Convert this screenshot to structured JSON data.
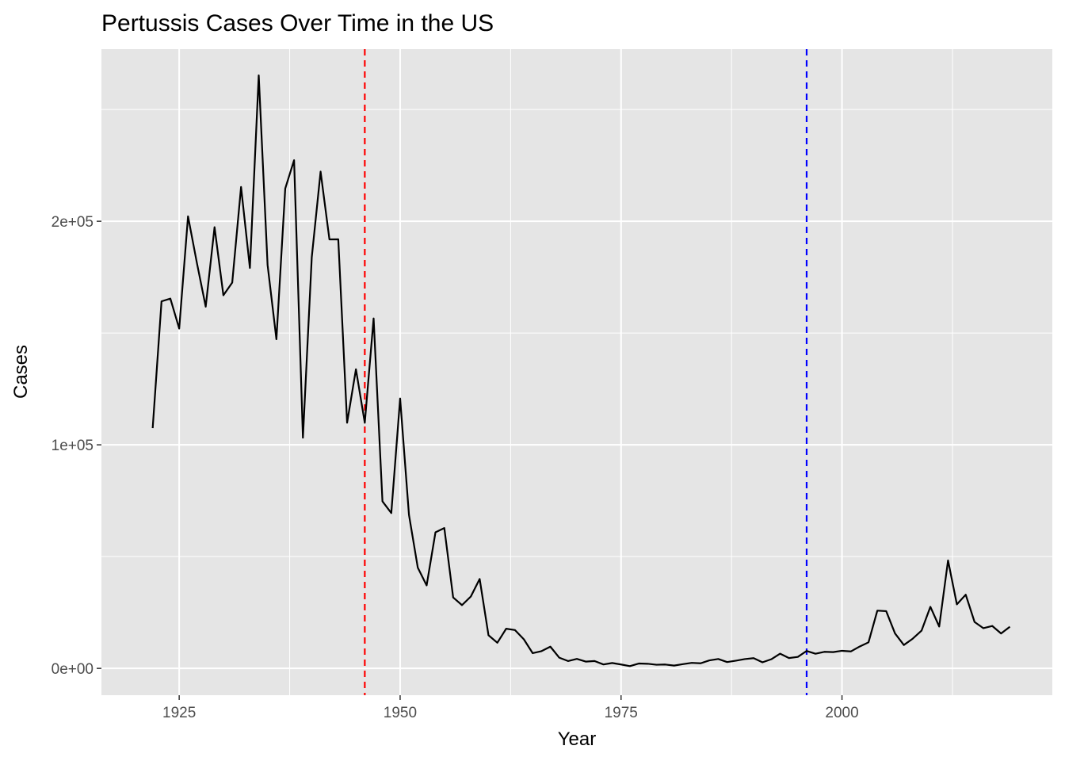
{
  "chart_data": {
    "type": "line",
    "title": "Pertussis Cases Over Time in the US",
    "xlabel": "Year",
    "ylabel": "Cases",
    "xlim": [
      1916.2,
      2023.8
    ],
    "ylim": [
      -12000,
      277000
    ],
    "x_ticks": [
      1925,
      1950,
      1975,
      2000
    ],
    "x_tick_labels": [
      "1925",
      "1950",
      "1975",
      "2000"
    ],
    "y_ticks": [
      0,
      100000,
      200000
    ],
    "y_tick_labels": [
      "0e+00",
      "1e+05",
      "2e+05"
    ],
    "grid": true,
    "background": "#e5e5e5",
    "series": [
      {
        "color": "#000000",
        "x": [
          1922,
          1923,
          1924,
          1925,
          1926,
          1927,
          1928,
          1929,
          1930,
          1931,
          1932,
          1933,
          1934,
          1935,
          1936,
          1937,
          1938,
          1939,
          1940,
          1941,
          1942,
          1943,
          1944,
          1945,
          1946,
          1947,
          1948,
          1949,
          1950,
          1951,
          1952,
          1953,
          1954,
          1955,
          1956,
          1957,
          1958,
          1959,
          1960,
          1961,
          1962,
          1963,
          1964,
          1965,
          1966,
          1967,
          1968,
          1969,
          1970,
          1971,
          1972,
          1973,
          1974,
          1975,
          1976,
          1977,
          1978,
          1979,
          1980,
          1981,
          1982,
          1983,
          1984,
          1985,
          1986,
          1987,
          1988,
          1989,
          1990,
          1991,
          1992,
          1993,
          1994,
          1995,
          1996,
          1997,
          1998,
          1999,
          2000,
          2001,
          2002,
          2003,
          2004,
          2005,
          2006,
          2007,
          2008,
          2009,
          2010,
          2011,
          2012,
          2013,
          2014,
          2015,
          2016,
          2017,
          2018,
          2019
        ],
        "y": [
          107473,
          164191,
          165418,
          152003,
          202210,
          181411,
          161799,
          197371,
          166914,
          172559,
          215343,
          179135,
          265269,
          180518,
          147237,
          214652,
          227319,
          103188,
          183866,
          222202,
          191890,
          191943,
          109873,
          133792,
          109860,
          156517,
          74715,
          69479,
          120718,
          68687,
          45030,
          37129,
          60886,
          62786,
          31732,
          28295,
          32148,
          40005,
          14809,
          11468,
          17749,
          17135,
          13005,
          6799,
          7717,
          9718,
          4810,
          3285,
          4249,
          3036,
          3287,
          1759,
          2402,
          1738,
          1010,
          2177,
          2063,
          1623,
          1730,
          1248,
          1895,
          2463,
          2276,
          3589,
          4195,
          2823,
          3450,
          4157,
          4570,
          2719,
          4083,
          6586,
          4617,
          5137,
          7796,
          6564,
          7405,
          7288,
          7867,
          7580,
          9771,
          11647,
          25827,
          25616,
          15632,
          10454,
          13278,
          16858,
          27550,
          18719,
          48277,
          28639,
          32971,
          20762,
          17972,
          18975,
          15609,
          18617
        ]
      }
    ],
    "reference_lines": [
      {
        "x": 1946,
        "color": "#ff0000",
        "style": "dashed"
      },
      {
        "x": 1996,
        "color": "#0000ff",
        "style": "dashed"
      }
    ]
  }
}
